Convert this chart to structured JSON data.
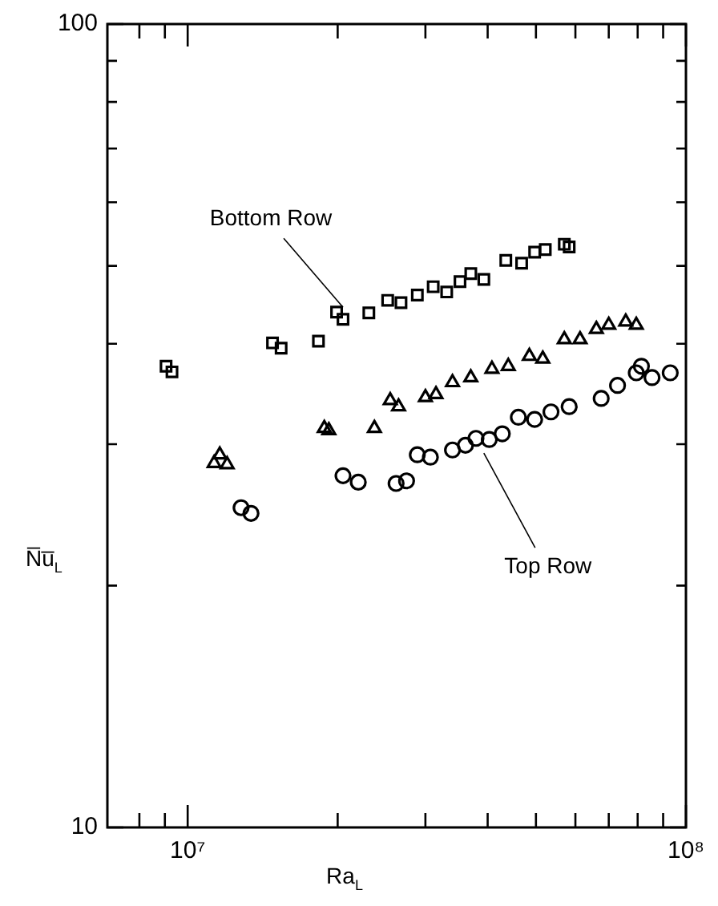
{
  "chart_data": {
    "type": "scatter",
    "xlabel": "Ra$_{L}$",
    "ylabel": "N̅u̅$_{L}$",
    "log": "xy",
    "grid": false,
    "legend": false,
    "xlim": [
      6900000,
      100000000
    ],
    "xticks": [
      {
        "value": 8000000,
        "label": null
      },
      {
        "value": 9000000,
        "label": null
      },
      {
        "value": 10000000,
        "label": "10⁷"
      },
      {
        "value": 20000000,
        "label": null
      },
      {
        "value": 30000000,
        "label": null
      },
      {
        "value": 40000000,
        "label": null
      },
      {
        "value": 50000000,
        "label": null
      },
      {
        "value": 60000000,
        "label": null
      },
      {
        "value": 70000000,
        "label": null
      },
      {
        "value": 80000000,
        "label": null
      },
      {
        "value": 90000000,
        "label": null
      },
      {
        "value": 100000000,
        "label": "10⁸"
      }
    ],
    "ylim": [
      10,
      100
    ],
    "yticks": [
      10,
      {
        "value": 20,
        "label": null
      },
      {
        "value": 30,
        "label": null
      },
      {
        "value": 40,
        "label": null
      },
      {
        "value": 50,
        "label": null
      },
      {
        "value": 60,
        "label": null
      },
      {
        "value": 70,
        "label": null
      },
      {
        "value": 80,
        "label": null
      },
      {
        "value": 90,
        "label": null
      },
      100
    ],
    "series": [
      {
        "color": "#000000",
        "marker": "square",
        "x": [
          9300000,
          9050000,
          14800000,
          15400000,
          18300000,
          20500000,
          19900000,
          23100000,
          25200000,
          26800000,
          28900000,
          31100000,
          33100000,
          35200000,
          37000000,
          39300000,
          43500000,
          46800000,
          49700000,
          52200000,
          58300000,
          57000000
        ],
        "values": [
          36.9,
          37.5,
          40.1,
          39.5,
          40.3,
          42.9,
          43.8,
          43.7,
          45.3,
          45.0,
          46.0,
          47.1,
          46.4,
          47.8,
          48.9,
          48.1,
          50.8,
          50.4,
          52.0,
          52.4,
          52.8,
          53.2
        ]
      },
      {
        "color": "#000000",
        "marker": "triangle",
        "x": [
          11600000,
          11300000,
          12000000,
          18800000,
          19200000,
          23700000,
          25500000,
          26500000,
          30000000,
          31500000,
          34000000,
          37000000,
          40800000,
          44000000,
          48500000,
          51600000,
          57000000,
          61300000,
          66100000,
          70000000,
          75700000,
          79500000
        ],
        "values": [
          29.1,
          28.4,
          28.3,
          31.4,
          31.2,
          31.4,
          34.0,
          33.4,
          34.3,
          34.6,
          35.8,
          36.3,
          37.2,
          37.5,
          38.6,
          38.3,
          40.5,
          40.5,
          41.7,
          42.2,
          42.6,
          42.2
        ]
      },
      {
        "color": "#000000",
        "marker": "circle",
        "x": [
          12800000,
          13400000,
          20500000,
          22000000,
          26200000,
          27500000,
          28900000,
          30700000,
          34000000,
          36100000,
          37900000,
          40300000,
          42800000,
          46100000,
          49700000,
          53600000,
          58300000,
          67600000,
          72900000,
          79500000,
          85500000,
          93000000,
          81400000
        ],
        "values": [
          25.0,
          24.6,
          27.4,
          26.9,
          26.8,
          27.0,
          29.1,
          28.9,
          29.5,
          29.9,
          30.5,
          30.4,
          30.9,
          32.4,
          32.2,
          32.9,
          33.4,
          34.2,
          35.5,
          36.8,
          36.3,
          36.8,
          37.5
        ]
      }
    ],
    "annotations": [
      {
        "text": "Bottom Row",
        "x": 20500000,
        "y": 43.0
      },
      {
        "text": "Top Row",
        "x": 39300000,
        "y": 30.2
      }
    ]
  }
}
